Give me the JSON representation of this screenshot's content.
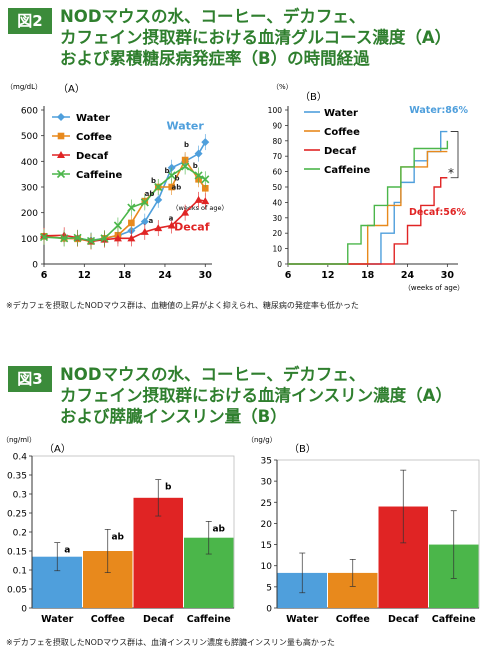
{
  "figure2": {
    "badge": "図2",
    "title_lines": [
      "NODマウスの水、コーヒー、デカフェ、",
      "カフェイン摂取群における血清グルコース濃度（A）",
      "および累積糖尿病発症率（B）の時間経過"
    ],
    "note": "※デカフェを摂取したNODマウス群は、血糖値の上昇がよく抑えられ、糖尿病の発症率も低かった"
  },
  "figure3": {
    "badge": "図3",
    "title_lines": [
      "NODマウスの水、コーヒー、デカフェ、",
      "カフェイン摂取群における血清インスリン濃度（A）",
      "および膵臓インスリン量（B）"
    ],
    "note": "※デカフェを摂取したNODマウス群は、血清インスリン濃度も膵臓インスリン量も高かった"
  },
  "colors": {
    "Water": "#4f9fdc",
    "Coffee": "#e8891c",
    "Decaf": "#e02424",
    "Caffeine": "#4bb64a",
    "title": "#2f7f2e"
  },
  "chart_data": [
    {
      "id": "glucose",
      "type": "line",
      "panel_label": "（A）",
      "unit_label": "（mg/dL）",
      "xlabel": "（weeks of age）",
      "xlim": [
        6,
        31
      ],
      "ylim": [
        0,
        600
      ],
      "xticks": [
        6,
        12,
        18,
        24,
        30
      ],
      "yticks": [
        0,
        100,
        200,
        300,
        400,
        500,
        600
      ],
      "x": [
        6,
        9,
        11,
        13,
        15,
        17,
        19,
        21,
        23,
        25,
        27,
        29,
        30
      ],
      "series": [
        {
          "name": "Water",
          "marker": "diamond",
          "values": [
            108,
            100,
            100,
            92,
            100,
            110,
            130,
            165,
            250,
            375,
            400,
            430,
            475
          ]
        },
        {
          "name": "Coffee",
          "marker": "square",
          "values": [
            108,
            100,
            98,
            88,
            100,
            112,
            160,
            245,
            300,
            300,
            405,
            330,
            295
          ]
        },
        {
          "name": "Decaf",
          "marker": "triangle",
          "values": [
            110,
            112,
            102,
            88,
            95,
            100,
            100,
            125,
            140,
            150,
            200,
            250,
            245
          ]
        },
        {
          "name": "Caffeine",
          "marker": "x",
          "values": [
            105,
            100,
            102,
            90,
            100,
            150,
            220,
            240,
            300,
            345,
            380,
            345,
            330
          ]
        }
      ],
      "annotations": [
        {
          "text": "Water",
          "x": 27,
          "y": 525,
          "color": "#4f9fdc"
        },
        {
          "text": "Decaf",
          "x": 28,
          "y": 130,
          "color": "#e02424"
        },
        {
          "text": "b",
          "x": 22.3,
          "y": 315
        },
        {
          "text": "b",
          "x": 24.3,
          "y": 355
        },
        {
          "text": "ab",
          "x": 21.7,
          "y": 265
        },
        {
          "text": "a",
          "x": 21.9,
          "y": 160
        },
        {
          "text": "b",
          "x": 27.2,
          "y": 455
        },
        {
          "text": "b",
          "x": 28.5,
          "y": 375
        },
        {
          "text": "b",
          "x": 25.8,
          "y": 325
        },
        {
          "text": "ab",
          "x": 25.7,
          "y": 290
        },
        {
          "text": "a",
          "x": 24.9,
          "y": 170
        }
      ]
    },
    {
      "id": "incidence",
      "type": "line",
      "panel_label": "（B）",
      "unit_label": "（%）",
      "xlabel": "（weeks of age）",
      "xlim": [
        6,
        31
      ],
      "ylim": [
        0,
        100
      ],
      "xticks": [
        6,
        12,
        18,
        24,
        30
      ],
      "yticks": [
        0,
        10,
        20,
        30,
        40,
        50,
        60,
        70,
        80,
        90,
        100
      ],
      "series": [
        {
          "name": "Water",
          "steps": [
            [
              6,
              0
            ],
            [
              20,
              0
            ],
            [
              20,
              20
            ],
            [
              22,
              20
            ],
            [
              22,
              40
            ],
            [
              23,
              40
            ],
            [
              23,
              53
            ],
            [
              25,
              53
            ],
            [
              25,
              67
            ],
            [
              27,
              67
            ],
            [
              27,
              73
            ],
            [
              29,
              73
            ],
            [
              29,
              86
            ],
            [
              30,
              86
            ]
          ]
        },
        {
          "name": "Coffee",
          "steps": [
            [
              6,
              0
            ],
            [
              18,
              0
            ],
            [
              18,
              25
            ],
            [
              21,
              25
            ],
            [
              21,
              38
            ],
            [
              23,
              38
            ],
            [
              23,
              63
            ],
            [
              27,
              63
            ],
            [
              27,
              73
            ],
            [
              30,
              73
            ]
          ]
        },
        {
          "name": "Decaf",
          "steps": [
            [
              6,
              0
            ],
            [
              22,
              0
            ],
            [
              22,
              13
            ],
            [
              24,
              13
            ],
            [
              24,
              25
            ],
            [
              26,
              25
            ],
            [
              26,
              38
            ],
            [
              28,
              38
            ],
            [
              28,
              50
            ],
            [
              29,
              50
            ],
            [
              29,
              56
            ],
            [
              30,
              56
            ]
          ]
        },
        {
          "name": "Caffeine",
          "steps": [
            [
              6,
              0
            ],
            [
              15,
              0
            ],
            [
              15,
              13
            ],
            [
              17,
              13
            ],
            [
              17,
              25
            ],
            [
              19,
              25
            ],
            [
              19,
              38
            ],
            [
              21,
              38
            ],
            [
              21,
              50
            ],
            [
              23,
              50
            ],
            [
              23,
              63
            ],
            [
              25,
              63
            ],
            [
              25,
              75
            ],
            [
              30,
              75
            ],
            [
              30,
              80
            ]
          ]
        }
      ],
      "annotations": [
        {
          "text": "Water:86%",
          "color": "#4f9fdc"
        },
        {
          "text": "Decaf:56%",
          "color": "#e02424"
        },
        {
          "text": "*",
          "color": "#222222"
        }
      ]
    },
    {
      "id": "serum-insulin",
      "type": "bar",
      "panel_label": "（A）",
      "unit_label": "（ng/ml）",
      "categories": [
        "Water",
        "Coffee",
        "Decaf",
        "Caffeine"
      ],
      "values": [
        0.135,
        0.15,
        0.29,
        0.185
      ],
      "errors": [
        0.037,
        0.057,
        0.048,
        0.043
      ],
      "labels": [
        "a",
        "ab",
        "b",
        "ab"
      ],
      "ylim": [
        0,
        0.4
      ],
      "yticks": [
        "0",
        "0.05",
        "0.1",
        "0.15",
        "0.2",
        "0.25",
        "0.3",
        "0.35",
        "0.4"
      ]
    },
    {
      "id": "pancreatic-insulin",
      "type": "bar",
      "panel_label": "（B）",
      "unit_label": "（ng/g）",
      "categories": [
        "Water",
        "Coffee",
        "Decaf",
        "Caffeine"
      ],
      "values": [
        8.3,
        8.3,
        24,
        15
      ],
      "errors": [
        4.7,
        3.2,
        8.6,
        8
      ],
      "ylim": [
        0,
        35
      ],
      "yticks": [
        "0",
        "5",
        "10",
        "15",
        "20",
        "25",
        "30",
        "35"
      ]
    }
  ]
}
